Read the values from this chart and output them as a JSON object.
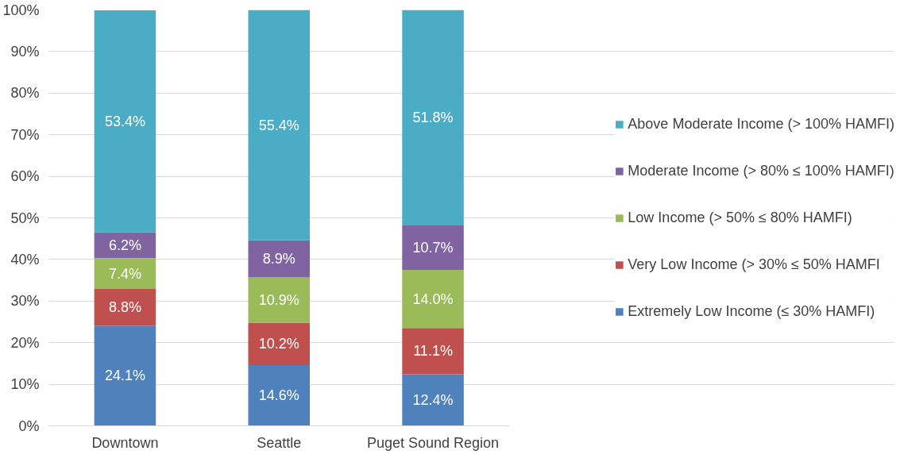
{
  "chart_data": {
    "type": "bar",
    "stacked": true,
    "categories": [
      "Downtown",
      "Seattle",
      "Puget Sound Region"
    ],
    "series": [
      {
        "name": "Extremely Low Income (≤ 30% HAMFI)",
        "color": "#4f81bd",
        "values": [
          24.1,
          14.6,
          12.4
        ],
        "value_labels": [
          "24.1%",
          "14.6%",
          "12.4%"
        ]
      },
      {
        "name": "Very Low Income (> 30% ≤ 50% HAMFI",
        "color": "#c0504d",
        "values": [
          8.8,
          10.2,
          11.1
        ],
        "value_labels": [
          "8.8%",
          "10.2%",
          "11.1%"
        ]
      },
      {
        "name": "Low Income (> 50% ≤ 80% HAMFI)",
        "color": "#9bbb59",
        "values": [
          7.4,
          10.9,
          14.0
        ],
        "value_labels": [
          "7.4%",
          "10.9%",
          "14.0%"
        ]
      },
      {
        "name": "Moderate Income (> 80% ≤ 100% HAMFI)",
        "color": "#8064a2",
        "values": [
          6.2,
          8.9,
          10.7
        ],
        "value_labels": [
          "6.2%",
          "8.9%",
          "10.7%"
        ]
      },
      {
        "name": "Above Moderate Income (> 100% HAMFI)",
        "color": "#4bacc6",
        "values": [
          53.4,
          55.4,
          51.8
        ],
        "value_labels": [
          "53.4%",
          "55.4%",
          "51.8%"
        ]
      }
    ],
    "ylim": [
      0,
      100
    ],
    "yticks": [
      {
        "value": 0,
        "label": "0%"
      },
      {
        "value": 10,
        "label": "10%"
      },
      {
        "value": 20,
        "label": "20%"
      },
      {
        "value": 30,
        "label": "30%"
      },
      {
        "value": 40,
        "label": "40%"
      },
      {
        "value": 50,
        "label": "50%"
      },
      {
        "value": 60,
        "label": "60%"
      },
      {
        "value": 70,
        "label": "70%"
      },
      {
        "value": 80,
        "label": "80%"
      },
      {
        "value": 90,
        "label": "90%"
      },
      {
        "value": 100,
        "label": "100%"
      }
    ],
    "grid": "y",
    "legend": "right"
  }
}
